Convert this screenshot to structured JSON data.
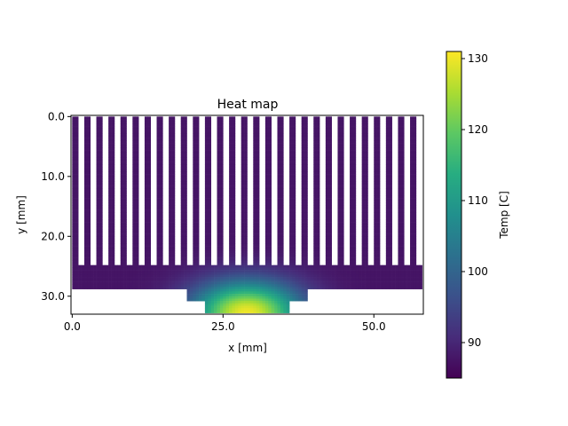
{
  "chart_data": {
    "type": "heatmap",
    "title": "Heat map",
    "xlabel": "x [mm]",
    "ylabel": "y [mm]",
    "xlim": [
      -0.2,
      58.2
    ],
    "ylim": [
      33.0,
      -0.2
    ],
    "y_inverted": true,
    "xticks": [
      0.0,
      25.0,
      50.0
    ],
    "xtick_labels": [
      "0.0",
      "25.0",
      "50.0"
    ],
    "yticks": [
      0.0,
      10.0,
      20.0,
      30.0
    ],
    "ytick_labels": [
      "0.0",
      "10.0",
      "20.0",
      "30.0"
    ],
    "colorbar": {
      "label": "Temp [C]",
      "range": [
        85,
        131
      ],
      "ticks": [
        90,
        100,
        110,
        120,
        130
      ],
      "tick_labels": [
        "90",
        "100",
        "110",
        "120",
        "130"
      ],
      "colormap": "viridis"
    },
    "geometry": {
      "fin_count": 30,
      "fin_pitch_mm": 2.0,
      "fin_width_mm": 1.0,
      "fin_height_mm": [
        0.0,
        24.8
      ],
      "base_mm": {
        "x": [
          0.0,
          58.0
        ],
        "y": [
          24.8,
          28.7
        ]
      },
      "step_mm": {
        "x": [
          18.9,
          38.9
        ],
        "y": [
          28.7,
          30.7
        ]
      },
      "source_mm": {
        "x": [
          21.9,
          35.9
        ],
        "y": [
          30.7,
          32.8
        ]
      }
    },
    "temperature_field": {
      "ambient_C": 87.5,
      "peak_C": 130.0,
      "peak_location_mm": [
        28.9,
        32.8
      ]
    }
  }
}
